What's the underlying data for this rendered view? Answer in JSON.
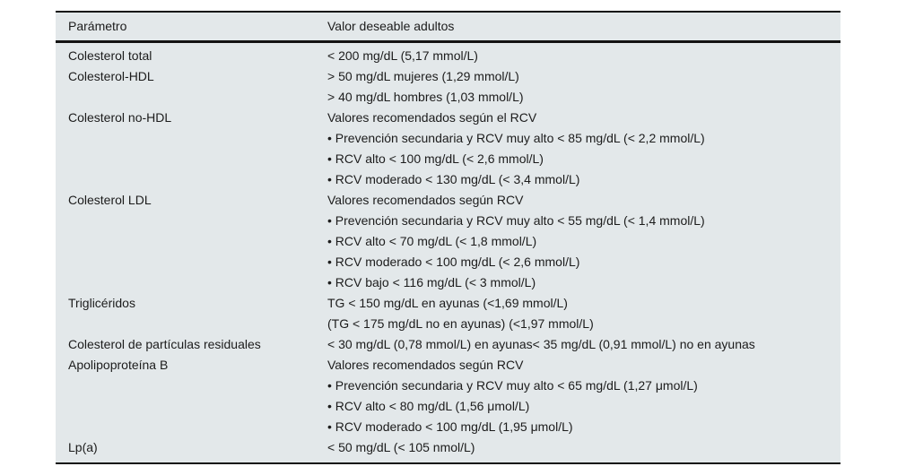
{
  "table": {
    "columns": [
      "Parámetro",
      "Valor deseable adultos"
    ],
    "rows": [
      {
        "parameter": "Colesterol total",
        "values": [
          "< 200 mg/dL (5,17 mmol/L)"
        ]
      },
      {
        "parameter": "Colesterol-HDL",
        "values": [
          "> 50 mg/dL mujeres (1,29 mmol/L)",
          "> 40 mg/dL hombres (1,03 mmol/L)"
        ]
      },
      {
        "parameter": "Colesterol no-HDL",
        "values": [
          "Valores recomendados según el RCV",
          "• Prevención secundaria y RCV muy alto < 85 mg/dL (< 2,2 mmol/L)",
          "• RCV alto < 100 mg/dL (< 2,6 mmol/L)",
          "• RCV moderado < 130 mg/dL (< 3,4 mmol/L)"
        ]
      },
      {
        "parameter": "Colesterol LDL",
        "values": [
          "Valores recomendados según RCV",
          "• Prevención secundaria y RCV muy alto < 55 mg/dL (< 1,4 mmol/L)",
          "• RCV alto < 70 mg/dL (< 1,8 mmol/L)",
          "• RCV moderado < 100 mg/dL (< 2,6 mmol/L)",
          "• RCV bajo < 116 mg/dL (< 3 mmol/L)"
        ]
      },
      {
        "parameter": "Triglicéridos",
        "values": [
          "TG < 150 mg/dL en ayunas (<1,69 mmol/L)",
          "(TG < 175 mg/dL no en ayunas) (<1,97 mmol/L)"
        ]
      },
      {
        "parameter": "Colesterol de partículas residuales",
        "values": [
          "< 30 mg/dL (0,78 mmol/L) en ayunas< 35 mg/dL (0,91 mmol/L) no en ayunas"
        ]
      },
      {
        "parameter": "Apolipoproteína B",
        "values": [
          "Valores recomendados según RCV",
          "• Prevención secundaria y RCV muy alto < 65 mg/dL (1,27 μmol/L)",
          "• RCV alto < 80 mg/dL (1,56 μmol/L)",
          "• RCV moderado < 100 mg/dL (1,95 μmol/L)"
        ]
      },
      {
        "parameter": "Lp(a)",
        "values": [
          "< 50 mg/dL (< 105 nmol/L)"
        ]
      }
    ],
    "colors": {
      "page_bg": "#ffffff",
      "table_bg": "#e3e8ea",
      "rule": "#131313",
      "text": "#1c1c1c"
    }
  }
}
